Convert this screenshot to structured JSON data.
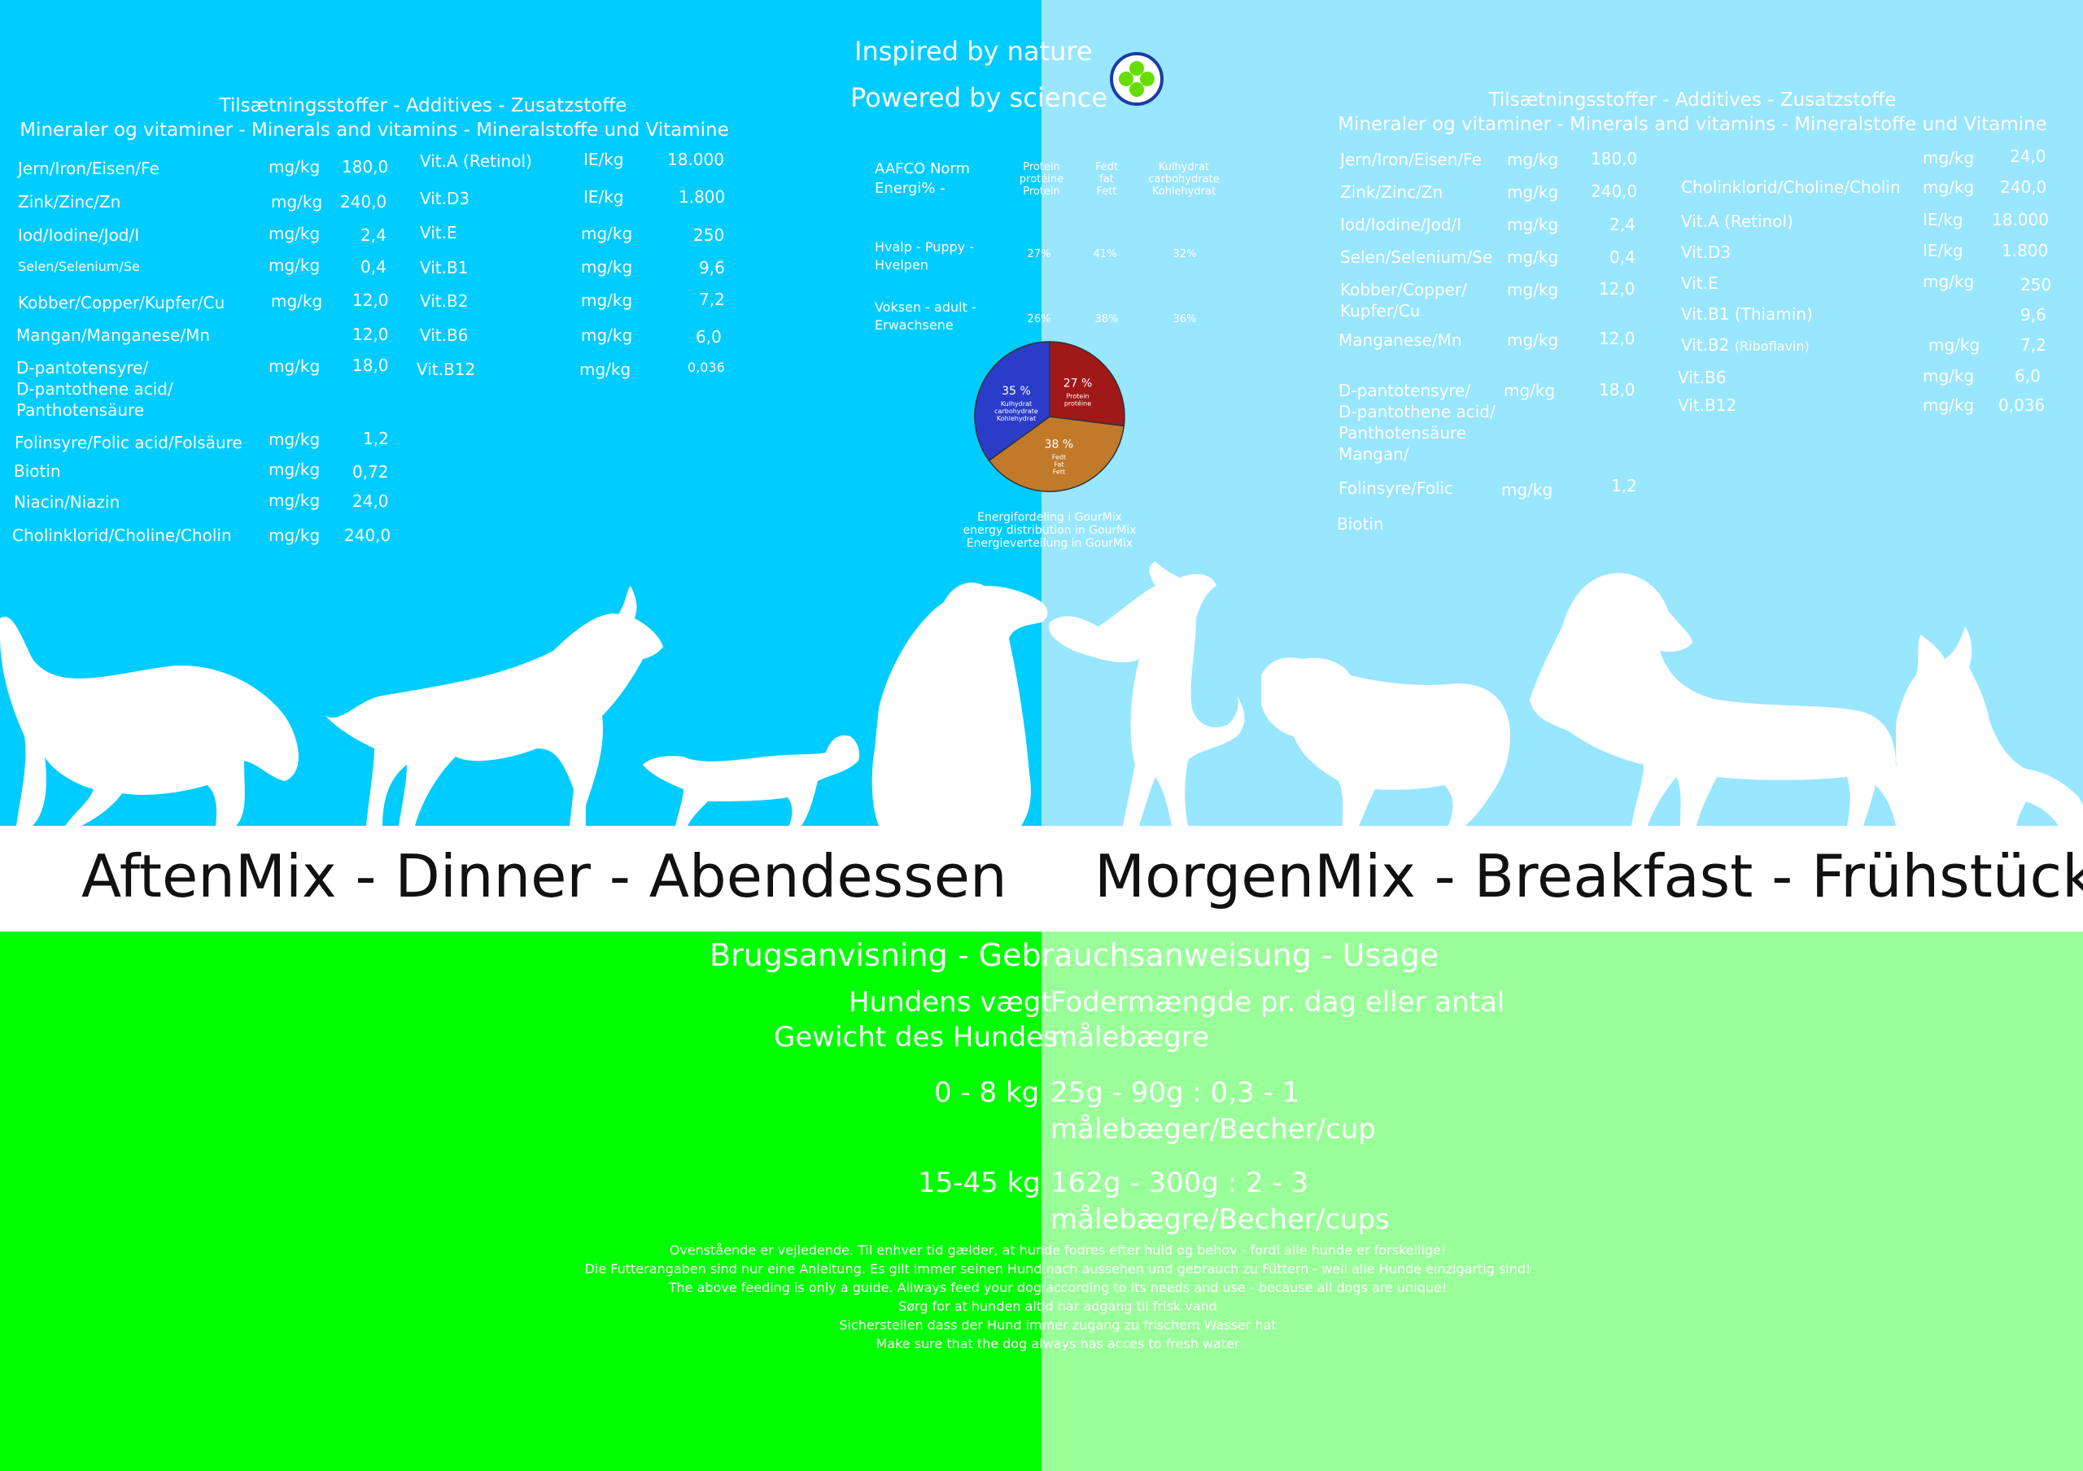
{
  "header": {
    "line1": "Inspired by nature",
    "line2": "Powered by science",
    "logo": "clover-logo-icon"
  },
  "colors": {
    "left_top": "#00ccff",
    "right_top": "#99e6ff",
    "left_bottom": "#00ff00",
    "right_bottom": "#99ff99",
    "title_band": "#ffffff"
  },
  "left": {
    "heading1": "Tilsætningsstoffer - Additives - Zusatzstoffe",
    "heading2": "Mineraler og vitaminer - Minerals and vitamins - Mineralstoffe und Vitamine",
    "minerals": [
      {
        "name": "Jern/Iron/Eisen/Fe",
        "unit": "mg/kg",
        "value": "180,0"
      },
      {
        "name": "Zink/Zinc/Zn",
        "unit": "mg/kg",
        "value": "240,0"
      },
      {
        "name": "Iod/Iodine/Jod/I",
        "unit": "mg/kg",
        "value": "2,4"
      },
      {
        "name": "Selen/Selenium/Se",
        "unit": "mg/kg",
        "value": "0,4"
      },
      {
        "name": "Kobber/Copper/Kupfer/Cu",
        "unit": "mg/kg",
        "value": "12,0"
      },
      {
        "name": "Mangan/Manganese/Mn",
        "unit": "",
        "value": "12,0"
      },
      {
        "name": "D-pantotensyre/",
        "name2": "D-pantothene acid/",
        "name3": "Panthotensäure",
        "unit": "mg/kg",
        "value": "18,0"
      },
      {
        "name": "Folinsyre/Folic acid/Folsäure",
        "unit": "mg/kg",
        "value": "1,2"
      },
      {
        "name": "Biotin",
        "unit": "mg/kg",
        "value": "0,72"
      },
      {
        "name": "Niacin/Niazin",
        "unit": "mg/kg",
        "value": "24,0"
      },
      {
        "name": "Cholinklorid/Choline/Cholin",
        "unit": "mg/kg",
        "value": "240,0"
      }
    ],
    "vitamins": [
      {
        "name": "Vit.A (Retinol)",
        "unit": "IE/kg",
        "value": "18.000"
      },
      {
        "name": "Vit.D3",
        "unit": "IE/kg",
        "value": "1.800"
      },
      {
        "name": "Vit.E",
        "unit": "mg/kg",
        "value": "250"
      },
      {
        "name": "Vit.B1",
        "unit": "mg/kg",
        "value": "9,6"
      },
      {
        "name": "Vit.B2",
        "unit": "mg/kg",
        "value": "7,2"
      },
      {
        "name": "Vit.B6",
        "unit": "mg/kg",
        "value": "6,0"
      },
      {
        "name": "Vit.B12",
        "unit": "mg/kg",
        "value": "0,036"
      }
    ],
    "title": "AftenMix - Dinner - Abendessen"
  },
  "center": {
    "aafco_label1": "AAFCO Norm",
    "aafco_label2": "Energi% -",
    "col_protein": [
      "Protein",
      "protéine",
      "Protein"
    ],
    "col_fat": [
      "Fedt",
      "fat",
      "Fett"
    ],
    "col_carb": [
      "Kulhydrat",
      "carbohydrate",
      "Kohlehydrat"
    ],
    "row1_label": [
      "Hvalp - Puppy -",
      "Hvelpen"
    ],
    "row1_values": [
      "27%",
      "41%",
      "32%"
    ],
    "row2_label": [
      "Voksen - adult -",
      "Erwachsene"
    ],
    "row2_values": [
      "26%",
      "38%",
      "36%"
    ],
    "pie_caption": [
      "Energifordeling i GourMix",
      "energy distribution in GourMix",
      "Energieverteilung in GourMix"
    ]
  },
  "chart_data": {
    "type": "pie",
    "categories": [
      "Protein",
      "Fedt/Fat/Fett",
      "Kulhydrat/carbohydrate/Kohlehydrat"
    ],
    "values": [
      27,
      38,
      35
    ],
    "labels": [
      "27 %",
      "38 %",
      "35 %"
    ],
    "sublabels": [
      [
        "Protein",
        "protéine"
      ],
      [
        "Fedt",
        "Fat",
        "Fett"
      ],
      [
        "Kulhydrat",
        "carbohydrate",
        "Kohlehydrat"
      ]
    ],
    "colors": [
      "#a01818",
      "#c07a2a",
      "#2a3cc8"
    ]
  },
  "right": {
    "heading1": "Tilsætningsstoffer - Additives - Zusatzstoffe",
    "heading2": "Mineraler og vitaminer - Minerals and vitamins - Mineralstoffe und Vitamine",
    "minerals": [
      {
        "name": "Jern/Iron/Eisen/Fe",
        "unit": "mg/kg",
        "value": "180,0"
      },
      {
        "name": "Zink/Zinc/Zn",
        "unit": "mg/kg",
        "value": "240,0"
      },
      {
        "name": "Iod/Iodine/Jod/I",
        "unit": "mg/kg",
        "value": "2,4"
      },
      {
        "name": "Selen/Selenium/Se",
        "unit": "mg/kg",
        "value": "0,4"
      },
      {
        "name": "Kobber/Copper/",
        "name2": "Kupfer/Cu",
        "unit": "mg/kg",
        "value": "12,0"
      },
      {
        "name": "Manganese/Mn",
        "unit": "mg/kg",
        "value": "12,0"
      },
      {
        "name": "D-pantotensyre/",
        "name2": "D-pantothene acid/",
        "name3": "Panthotensäure",
        "name4": "Mangan/",
        "unit": "mg/kg",
        "value": "18,0"
      },
      {
        "name": "Folinsyre/Folic",
        "unit": "mg/kg",
        "value": "1,2"
      },
      {
        "name": "Biotin",
        "unit": "",
        "value": ""
      }
    ],
    "vitamins": [
      {
        "name": "",
        "unit": "mg/kg",
        "value": "24,0"
      },
      {
        "name": "Cholinklorid/Choline/Cholin",
        "unit": "mg/kg",
        "value": "240,0"
      },
      {
        "name": "Vit.A (Retinol)",
        "unit": "IE/kg",
        "value": "18.000"
      },
      {
        "name": "Vit.D3",
        "unit": "IE/kg",
        "value": "1.800"
      },
      {
        "name": "Vit.E",
        "unit": "mg/kg",
        "value": "250"
      },
      {
        "name": "Vit.B1 (Thiamin)",
        "unit": "",
        "value": "9,6"
      },
      {
        "name": "Vit.B2",
        "name_small": "(Riboflavin)",
        "unit": "mg/kg",
        "value": "7,2"
      },
      {
        "name": "Vit.B6",
        "unit": "mg/kg",
        "value": "6,0"
      },
      {
        "name": "Vit.B12",
        "unit": "mg/kg",
        "value": "0,036"
      }
    ],
    "title": "MorgenMix - Breakfast - Frühstück"
  },
  "usage": {
    "heading": "Brugsanvisning - Gebrauchsanweisung - Usage",
    "weight_label1": "Hundens vægt",
    "weight_label2": "Gewicht des Hundes",
    "amount_label1": "Fodermængde pr. dag eller antal",
    "amount_label2": "målebægre",
    "row1_weight": "0 - 8 kg",
    "row1_amount1": "25g - 90g : 0,3 - 1",
    "row1_amount2": "målebæger/Becher/cup",
    "row2_weight": "15-45 kg",
    "row2_amount1": "162g - 300g : 2 - 3",
    "row2_amount2": "målebægre/Becher/cups",
    "notes": [
      "Ovenstående er vejledende. Til enhver tid gælder, at hunde fodres efter huld og behov - fordi alle hunde er forskellige!",
      "Die Futterangaben sind nur eine Anleitung. Es gilt immer seinen Hund nach aussehen und  gebrauch zu Füttern - weil alle Hunde einzigartig sind!",
      "The above feeding is only a guide. Allways feed your dog according to its needs and use - because all dogs are unique!",
      "Sørg for at hunden altid har adgang til frisk vand",
      "Sicherstellen dass der Hund immer zugang zu frischem Wasser hat",
      "Make sure that the dog always has acces to fresh water"
    ]
  }
}
